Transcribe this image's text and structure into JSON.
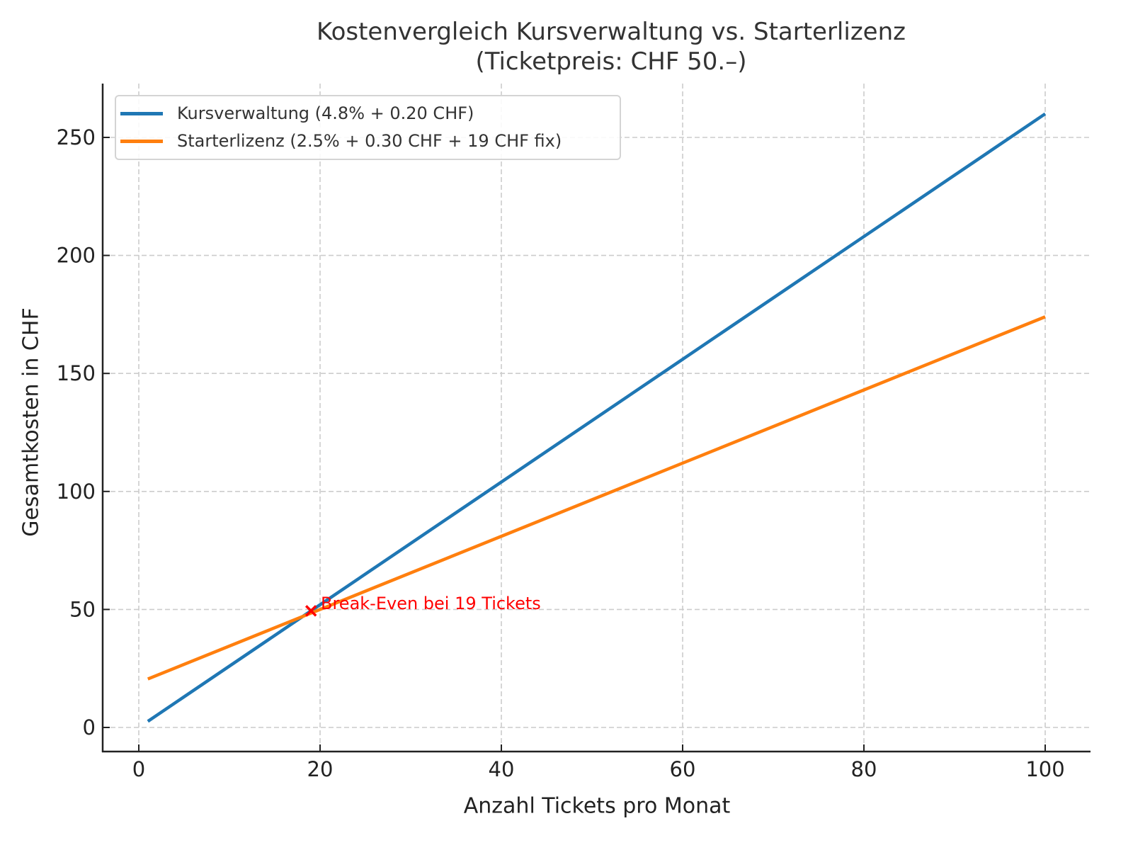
{
  "chart_data": {
    "type": "line",
    "title": "Kostenvergleich Kursverwaltung vs. Starterlizenz",
    "subtitle": "(Ticketpreis: CHF 50.–)",
    "xlabel": "Anzahl Tickets pro Monat",
    "ylabel": "Gesamtkosten in CHF",
    "xlim": [
      -4,
      105
    ],
    "ylim": [
      -10,
      272
    ],
    "x_ticks": [
      0,
      20,
      40,
      60,
      80,
      100
    ],
    "y_ticks": [
      0,
      50,
      100,
      150,
      200,
      250
    ],
    "grid": true,
    "legend_position": "upper left",
    "x": [
      1,
      19,
      20,
      40,
      60,
      80,
      100
    ],
    "series": [
      {
        "name": "Kursverwaltung (4.8% + 0.20 CHF)",
        "color": "#1f77b4",
        "formula": "2.60 * n",
        "values": [
          2.6,
          49.4,
          52.0,
          104.0,
          156.0,
          208.0,
          260.0
        ]
      },
      {
        "name": "Starterlizenz (2.5% + 0.30 CHF + 19 CHF fix)",
        "color": "#ff7f0e",
        "formula": "1.55 * n + 19",
        "values": [
          20.55,
          48.45,
          50.0,
          81.0,
          112.0,
          143.0,
          174.0
        ]
      }
    ],
    "annotations": [
      {
        "text": "Break-Even bei 19 Tickets",
        "x": 19,
        "y": 49.4,
        "marker": "x",
        "color": "#ff0000"
      }
    ]
  },
  "labels": {
    "title_line1": "Kostenvergleich Kursverwaltung vs. Starterlizenz",
    "title_line2": "(Ticketpreis: CHF 50.–)",
    "xlabel": "Anzahl Tickets pro Monat",
    "ylabel": "Gesamtkosten in CHF",
    "x_ticks": [
      "0",
      "20",
      "40",
      "60",
      "80",
      "100"
    ],
    "y_ticks": [
      "0",
      "50",
      "100",
      "150",
      "200",
      "250"
    ],
    "legend": [
      {
        "label": "Kursverwaltung (4.8% + 0.20 CHF)",
        "color": "#1f77b4"
      },
      {
        "label": "Starterlizenz (2.5% + 0.30 CHF + 19 CHF fix)",
        "color": "#ff7f0e"
      }
    ],
    "annotation": "Break-Even bei 19 Tickets",
    "annotation_color": "#ff0000"
  }
}
